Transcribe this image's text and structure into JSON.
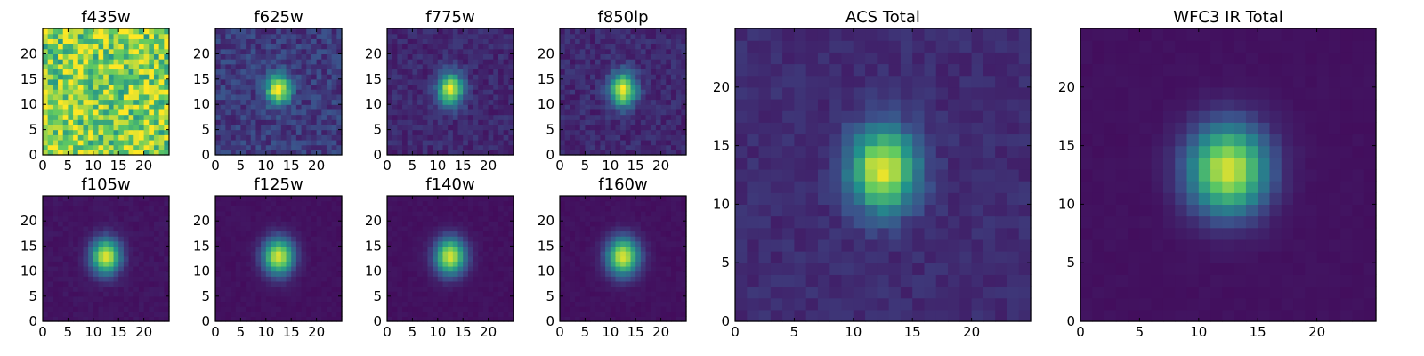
{
  "figure": {
    "colormap": "viridis",
    "colormap_stops": [
      "#440154",
      "#3b528b",
      "#21918c",
      "#5ec962",
      "#fde725"
    ]
  },
  "chart_data": [
    {
      "type": "heatmap",
      "title": "f435w",
      "grid": false,
      "xlim": [
        0,
        25
      ],
      "ylim": [
        0,
        25
      ],
      "xticks": [
        0,
        5,
        10,
        15,
        20
      ],
      "yticks": [
        0,
        5,
        10,
        15,
        20
      ],
      "source_center": [
        12.5,
        13
      ],
      "source_sigma": [
        2.5,
        3
      ],
      "source_peak": 0.0,
      "background": 0.8,
      "noise": 0.28
    },
    {
      "type": "heatmap",
      "title": "f625w",
      "grid": false,
      "xlim": [
        0,
        25
      ],
      "ylim": [
        0,
        25
      ],
      "xticks": [
        0,
        5,
        10,
        15,
        20
      ],
      "yticks": [
        0,
        5,
        10,
        15,
        20
      ],
      "source_center": [
        12.5,
        13
      ],
      "source_sigma": [
        1.6,
        2.0
      ],
      "source_peak": 0.85,
      "background": 0.18,
      "noise": 0.09
    },
    {
      "type": "heatmap",
      "title": "f775w",
      "grid": false,
      "xlim": [
        0,
        25
      ],
      "ylim": [
        0,
        25
      ],
      "xticks": [
        0,
        5,
        10,
        15,
        20
      ],
      "yticks": [
        0,
        5,
        10,
        15,
        20
      ],
      "source_center": [
        12.5,
        13
      ],
      "source_sigma": [
        1.7,
        2.2
      ],
      "source_peak": 0.85,
      "background": 0.12,
      "noise": 0.06
    },
    {
      "type": "heatmap",
      "title": "f850lp",
      "grid": false,
      "xlim": [
        0,
        25
      ],
      "ylim": [
        0,
        25
      ],
      "xticks": [
        0,
        5,
        10,
        15,
        20
      ],
      "yticks": [
        0,
        5,
        10,
        15,
        20
      ],
      "source_center": [
        12.5,
        13
      ],
      "source_sigma": [
        1.8,
        2.3
      ],
      "source_peak": 0.85,
      "background": 0.12,
      "noise": 0.06
    },
    {
      "type": "heatmap",
      "title": "ACS Total",
      "grid": false,
      "xlim": [
        0,
        25
      ],
      "ylim": [
        0,
        25
      ],
      "xticks": [
        0,
        5,
        10,
        15,
        20
      ],
      "yticks": [
        0,
        5,
        10,
        15,
        20
      ],
      "source_center": [
        12.5,
        13
      ],
      "source_sigma": [
        1.9,
        2.4
      ],
      "source_peak": 0.85,
      "background": 0.13,
      "noise": 0.04
    },
    {
      "type": "heatmap",
      "title": "WFC3 IR Total",
      "grid": false,
      "xlim": [
        0,
        25
      ],
      "ylim": [
        0,
        25
      ],
      "xticks": [
        0,
        5,
        10,
        15,
        20
      ],
      "yticks": [
        0,
        5,
        10,
        15,
        20
      ],
      "source_center": [
        12.5,
        13
      ],
      "source_sigma": [
        2.3,
        2.6
      ],
      "source_peak": 0.9,
      "background": 0.05,
      "noise": 0.01
    },
    {
      "type": "heatmap",
      "title": "f105w",
      "grid": false,
      "xlim": [
        0,
        25
      ],
      "ylim": [
        0,
        25
      ],
      "xticks": [
        0,
        5,
        10,
        15,
        20
      ],
      "yticks": [
        0,
        5,
        10,
        15,
        20
      ],
      "source_center": [
        12.5,
        13
      ],
      "source_sigma": [
        2.0,
        2.4
      ],
      "source_peak": 0.9,
      "background": 0.06,
      "noise": 0.02
    },
    {
      "type": "heatmap",
      "title": "f125w",
      "grid": false,
      "xlim": [
        0,
        25
      ],
      "ylim": [
        0,
        25
      ],
      "xticks": [
        0,
        5,
        10,
        15,
        20
      ],
      "yticks": [
        0,
        5,
        10,
        15,
        20
      ],
      "source_center": [
        12.5,
        13
      ],
      "source_sigma": [
        2.1,
        2.5
      ],
      "source_peak": 0.9,
      "background": 0.05,
      "noise": 0.015
    },
    {
      "type": "heatmap",
      "title": "f140w",
      "grid": false,
      "xlim": [
        0,
        25
      ],
      "ylim": [
        0,
        25
      ],
      "xticks": [
        0,
        5,
        10,
        15,
        20
      ],
      "yticks": [
        0,
        5,
        10,
        15,
        20
      ],
      "source_center": [
        12.5,
        13
      ],
      "source_sigma": [
        2.1,
        2.5
      ],
      "source_peak": 0.9,
      "background": 0.05,
      "noise": 0.015
    },
    {
      "type": "heatmap",
      "title": "f160w",
      "grid": false,
      "xlim": [
        0,
        25
      ],
      "ylim": [
        0,
        25
      ],
      "xticks": [
        0,
        5,
        10,
        15,
        20
      ],
      "yticks": [
        0,
        5,
        10,
        15,
        20
      ],
      "source_center": [
        12.5,
        13
      ],
      "source_sigma": [
        2.2,
        2.6
      ],
      "source_peak": 0.9,
      "background": 0.05,
      "noise": 0.015
    }
  ]
}
